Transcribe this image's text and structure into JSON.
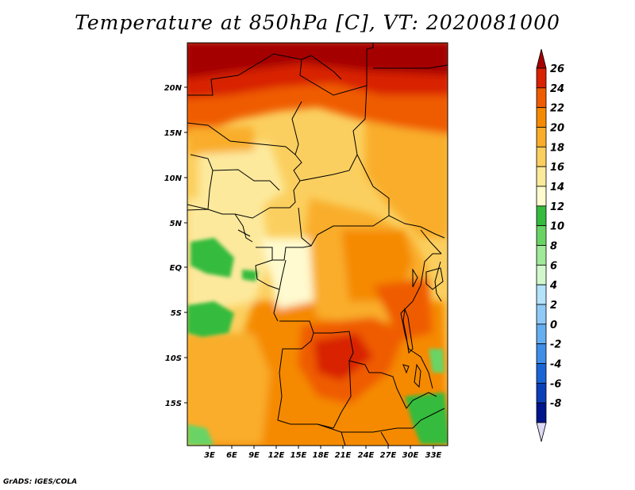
{
  "title": "Temperature at 850hPa [C], VT: 2020081000",
  "credit": "GrADS: IGES/COLA",
  "map": {
    "lat_labels": [
      "20N",
      "15N",
      "10N",
      "5N",
      "EQ",
      "5S",
      "10S",
      "15S"
    ],
    "lon_labels": [
      "3E",
      "6E",
      "9E",
      "12E",
      "15E",
      "18E",
      "21E",
      "24E",
      "27E",
      "30E",
      "33E"
    ]
  },
  "colorbar": {
    "levels": [
      "26",
      "24",
      "22",
      "20",
      "18",
      "16",
      "14",
      "12",
      "10",
      "8",
      "6",
      "4",
      "2",
      "0",
      "-2",
      "-4",
      "-6",
      "-8"
    ],
    "colors": [
      "#a50000",
      "#d82200",
      "#ef5b00",
      "#f58a00",
      "#f9ad2a",
      "#fbcf5f",
      "#fde99c",
      "#fffacf",
      "#35bb3d",
      "#69d465",
      "#a0e89a",
      "#d1f8cc",
      "#b4e2fb",
      "#8fcaf6",
      "#65aef0",
      "#3f8ee7",
      "#1a65d6",
      "#0a3fb7",
      "#00148b",
      "#dcd8f5"
    ]
  }
}
